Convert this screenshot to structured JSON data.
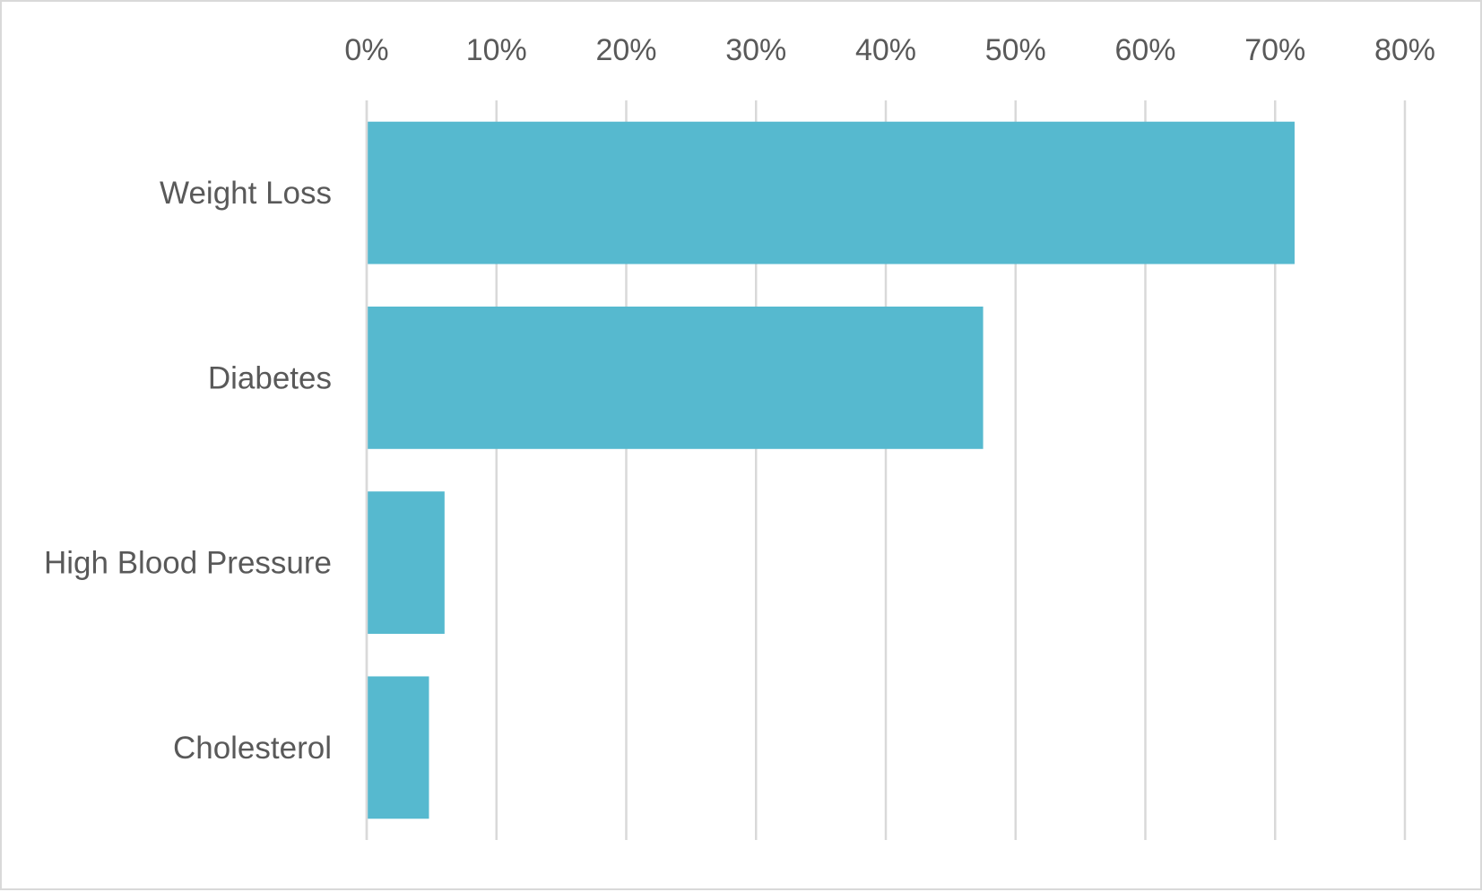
{
  "chart_data": {
    "type": "bar",
    "orientation": "horizontal",
    "categories": [
      "Weight Loss",
      "Diabetes",
      "High Blood Pressure",
      "Cholesterol"
    ],
    "values": [
      71.5,
      47.5,
      6,
      4.8
    ],
    "value_unit": "%",
    "title": "",
    "xlabel": "",
    "ylabel": "",
    "xlim": [
      0,
      80
    ],
    "x_ticks": [
      "0%",
      "10%",
      "20%",
      "30%",
      "40%",
      "50%",
      "60%",
      "70%",
      "80%"
    ],
    "x_axis_position": "top",
    "grid": true,
    "legend": "none",
    "bar_color": "#56b9cf",
    "grid_color": "#d9d9d9",
    "text_color": "#595959"
  }
}
